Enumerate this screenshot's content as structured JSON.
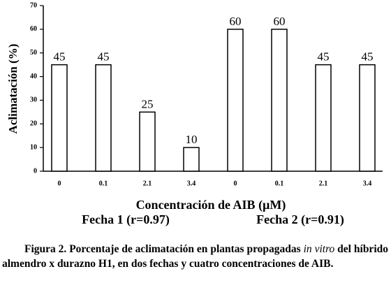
{
  "chart_data": {
    "type": "bar",
    "y_label": "Aclimatación (%)",
    "x_label": "Concentración de AIB (µM)",
    "group_labels": [
      "Fecha 1 (r=0.97)",
      "Fecha 2 (r=0.91)"
    ],
    "categories": [
      "0",
      "0.1",
      "2.1",
      "3.4",
      "0",
      "0.1",
      "2.1",
      "3.4"
    ],
    "values": [
      45,
      45,
      25,
      10,
      60,
      60,
      45,
      45
    ],
    "color": "#ffffff",
    "ylim": [
      0,
      70
    ],
    "yticks": [
      0,
      10,
      20,
      30,
      40,
      50,
      60,
      70
    ]
  },
  "caption": [
    "Figura 2. Porcentaje de aclimatación en plantas propagadas ",
    "in vitro",
    " del híbrido almendro x durazno H1, en dos fechas y cuatro concentraciones de AIB."
  ]
}
